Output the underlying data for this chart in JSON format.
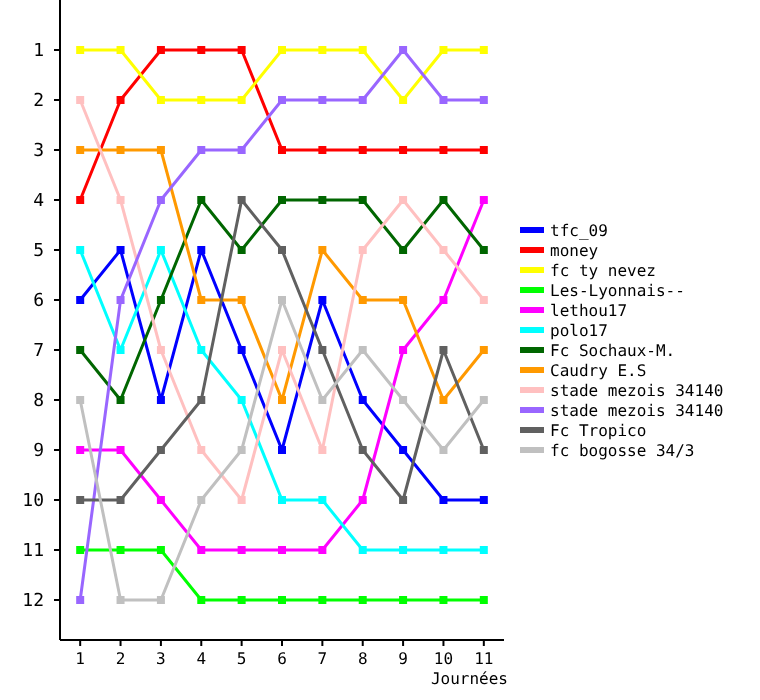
{
  "chart_data": {
    "type": "line",
    "xlabel": "Journées",
    "x": [
      1,
      2,
      3,
      4,
      5,
      6,
      7,
      8,
      9,
      10,
      11
    ],
    "xlim": [
      0.5,
      11.5
    ],
    "xticks": [
      1,
      2,
      3,
      4,
      5,
      6,
      7,
      8,
      9,
      10,
      11
    ],
    "ylim": [
      12.8,
      0
    ],
    "yticks": [
      1,
      2,
      3,
      4,
      5,
      6,
      7,
      8,
      9,
      10,
      11,
      12
    ],
    "grid": false,
    "legend": "right",
    "marker": "square",
    "line_style": "solid",
    "series": [
      {
        "name": "tfc_09",
        "color": "#0000ff",
        "values": [
          6,
          5,
          8,
          5,
          7,
          9,
          6,
          8,
          9,
          10,
          10
        ]
      },
      {
        "name": "money",
        "color": "#ff0000",
        "values": [
          4,
          2,
          1,
          1,
          1,
          3,
          3,
          3,
          3,
          3,
          3
        ]
      },
      {
        "name": "fc ty nevez",
        "color": "#ffff00",
        "values": [
          1,
          1,
          2,
          2,
          2,
          1,
          1,
          1,
          2,
          1,
          1
        ]
      },
      {
        "name": "Les-Lyonnais--",
        "color": "#00ff00",
        "values": [
          11,
          11,
          11,
          12,
          12,
          12,
          12,
          12,
          12,
          12,
          12
        ]
      },
      {
        "name": "lethou17",
        "color": "#ff00ff",
        "values": [
          9,
          9,
          10,
          11,
          11,
          11,
          11,
          10,
          7,
          6,
          4
        ]
      },
      {
        "name": "polo17",
        "color": "#00ffff",
        "values": [
          5,
          7,
          5,
          7,
          8,
          10,
          10,
          11,
          11,
          11,
          11
        ]
      },
      {
        "name": "Fc Sochaux-M.",
        "color": "#006600",
        "values": [
          7,
          8,
          6,
          4,
          5,
          4,
          4,
          4,
          5,
          4,
          5
        ]
      },
      {
        "name": "Caudry E.S",
        "color": "#ff9900",
        "values": [
          3,
          3,
          3,
          6,
          6,
          8,
          5,
          6,
          6,
          8,
          7
        ]
      },
      {
        "name": "stade mezois 34140",
        "color": "#ffc0c0",
        "values": [
          2,
          4,
          7,
          9,
          10,
          7,
          9,
          5,
          4,
          5,
          6
        ]
      },
      {
        "name": "stade mezois 34140",
        "color": "#9966ff",
        "values": [
          12,
          6,
          4,
          3,
          3,
          2,
          2,
          2,
          1,
          2,
          2
        ]
      },
      {
        "name": "Fc Tropico",
        "color": "#606060",
        "values": [
          10,
          10,
          9,
          8,
          4,
          5,
          7,
          9,
          10,
          7,
          9
        ]
      },
      {
        "name": "fc bogosse 34/3",
        "color": "#c0c0c0",
        "values": [
          8,
          12,
          12,
          10,
          9,
          6,
          8,
          7,
          8,
          9,
          8
        ]
      }
    ]
  }
}
